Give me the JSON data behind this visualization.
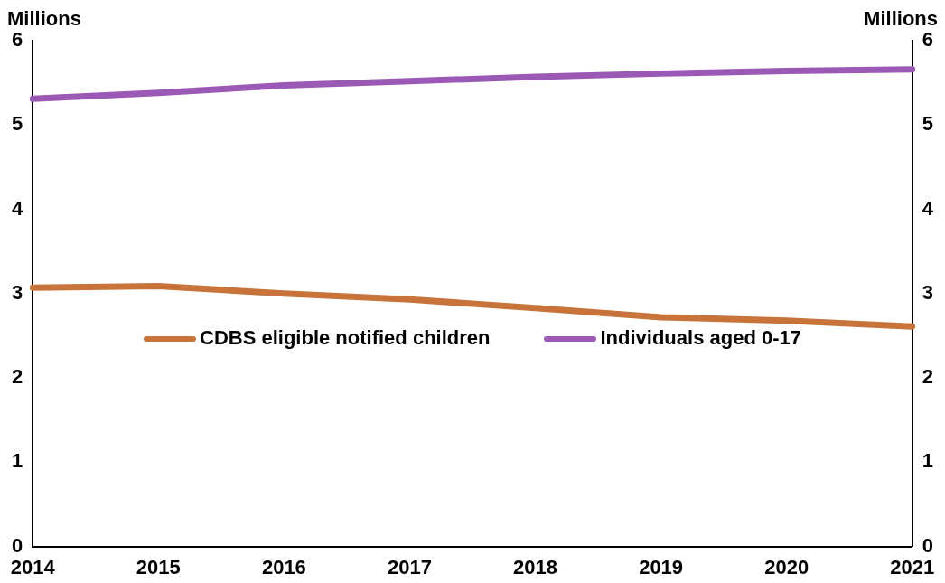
{
  "chart_data": {
    "type": "line",
    "categories": [
      "2014",
      "2015",
      "2016",
      "2017",
      "2018",
      "2019",
      "2020",
      "2021"
    ],
    "series": [
      {
        "name": "CDBS eligible notified children",
        "color": "#c8733a",
        "values": [
          3.07,
          3.09,
          3.0,
          2.93,
          2.83,
          2.72,
          2.68,
          2.61
        ]
      },
      {
        "name": "Individuals aged 0-17",
        "color": "#9b59b6",
        "values": [
          5.31,
          5.38,
          5.47,
          5.52,
          5.57,
          5.61,
          5.64,
          5.66
        ]
      }
    ],
    "ylabel": "Millions",
    "y2label": "Millions",
    "ylim": [
      0,
      6
    ],
    "yticks": [
      0,
      1,
      2,
      3,
      4,
      5,
      6
    ],
    "y2lim": [
      0,
      6
    ],
    "y2ticks": [
      0,
      1,
      2,
      3,
      4,
      5,
      6
    ],
    "grid": false,
    "legend": "center",
    "marker": "none",
    "line_style": "solid"
  }
}
